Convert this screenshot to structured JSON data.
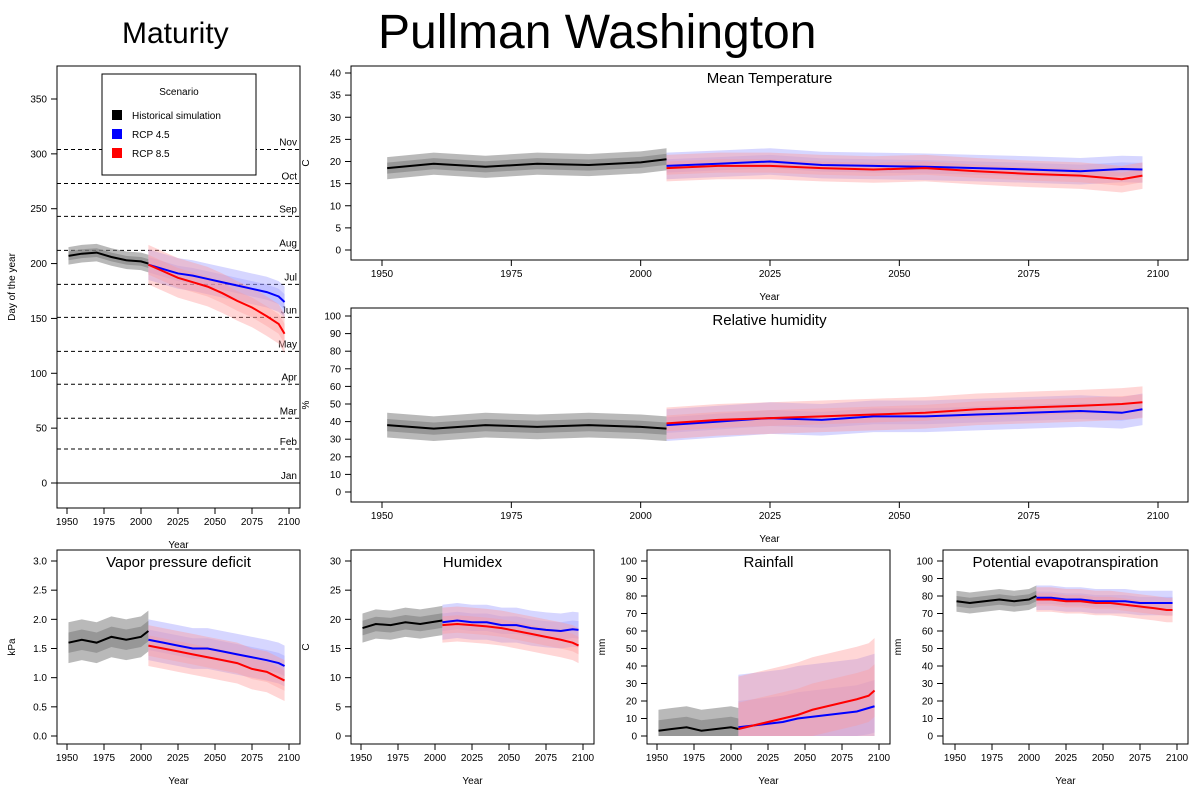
{
  "page": {
    "title": "Pullman Washington",
    "left_title": "Maturity"
  },
  "colors": {
    "historical": "#000000",
    "rcp45": "#0000ff",
    "rcp85": "#ff0000",
    "hist_band": "#808080",
    "rcp45_band": "#9999ff",
    "rcp85_band": "#ff9999"
  },
  "chart_data": [
    {
      "id": "maturity",
      "type": "line",
      "title": "",
      "xlabel": "Year",
      "ylabel": "Day of the year",
      "xlim": [
        1950,
        2100
      ],
      "ylim": [
        0,
        350
      ],
      "xticks": [
        1950,
        1975,
        2000,
        2025,
        2050,
        2075,
        2100
      ],
      "yticks": [
        0,
        50,
        100,
        150,
        200,
        250,
        300,
        350
      ],
      "month_lines": [
        {
          "day": 0,
          "label": "Jan"
        },
        {
          "day": 31,
          "label": "Feb"
        },
        {
          "day": 59,
          "label": "Mar"
        },
        {
          "day": 90,
          "label": "Apr"
        },
        {
          "day": 120,
          "label": "May"
        },
        {
          "day": 151,
          "label": "Jun"
        },
        {
          "day": 181,
          "label": "Jul"
        },
        {
          "day": 212,
          "label": "Aug"
        },
        {
          "day": 243,
          "label": "Sep"
        },
        {
          "day": 273,
          "label": "Oct"
        },
        {
          "day": 304,
          "label": "Nov"
        }
      ],
      "legend": {
        "title": "Scenario",
        "placement": "top-left",
        "entries": [
          "Historical simulation",
          "RCP 4.5",
          "RCP 8.5"
        ]
      },
      "series": [
        {
          "name": "Historical simulation",
          "x": [
            1951,
            1960,
            1970,
            1980,
            1990,
            2000,
            2005
          ],
          "y": [
            207,
            209,
            210,
            206,
            203,
            202,
            200
          ],
          "band": 8
        },
        {
          "name": "RCP 4.5",
          "x": [
            2005,
            2015,
            2025,
            2035,
            2045,
            2055,
            2065,
            2075,
            2085,
            2093,
            2097
          ],
          "y": [
            199,
            195,
            191,
            189,
            186,
            183,
            180,
            177,
            174,
            170,
            165
          ],
          "band": 14
        },
        {
          "name": "RCP 8.5",
          "x": [
            2005,
            2015,
            2025,
            2035,
            2045,
            2055,
            2065,
            2075,
            2085,
            2093,
            2097
          ],
          "y": [
            199,
            193,
            187,
            183,
            179,
            173,
            166,
            160,
            152,
            145,
            136
          ],
          "band": 18
        }
      ]
    },
    {
      "id": "mean-temperature",
      "type": "line",
      "title": "Mean Temperature",
      "xlabel": "Year",
      "ylabel": "C",
      "xlim": [
        1950,
        2100
      ],
      "ylim": [
        0,
        40
      ],
      "xticks": [
        1950,
        1975,
        2000,
        2025,
        2050,
        2075,
        2100
      ],
      "yticks": [
        0,
        5,
        10,
        15,
        20,
        25,
        30,
        35,
        40
      ],
      "series": [
        {
          "name": "Historical simulation",
          "x": [
            1951,
            1960,
            1970,
            1980,
            1990,
            2000,
            2005
          ],
          "y": [
            18.5,
            19.5,
            18.8,
            19.5,
            19.2,
            19.8,
            20.5
          ],
          "band": 2.5
        },
        {
          "name": "RCP 4.5",
          "x": [
            2005,
            2015,
            2025,
            2035,
            2045,
            2055,
            2065,
            2075,
            2085,
            2093,
            2097
          ],
          "y": [
            19,
            19.5,
            20,
            19.2,
            19,
            18.8,
            18.5,
            18.2,
            17.8,
            18.3,
            18.2
          ],
          "band": 3
        },
        {
          "name": "RCP 8.5",
          "x": [
            2005,
            2015,
            2025,
            2035,
            2045,
            2055,
            2065,
            2075,
            2085,
            2093,
            2097
          ],
          "y": [
            18.5,
            19,
            19,
            18.5,
            18.2,
            18.5,
            17.8,
            17.2,
            16.8,
            16,
            16.8
          ],
          "band": 3
        }
      ]
    },
    {
      "id": "relative-humidity",
      "type": "line",
      "title": "Relative humidity",
      "xlabel": "Year",
      "ylabel": "%",
      "xlim": [
        1950,
        2100
      ],
      "ylim": [
        0,
        100
      ],
      "xticks": [
        1950,
        1975,
        2000,
        2025,
        2050,
        2075,
        2100
      ],
      "yticks": [
        0,
        10,
        20,
        30,
        40,
        50,
        60,
        70,
        80,
        90,
        100
      ],
      "series": [
        {
          "name": "Historical simulation",
          "x": [
            1951,
            1960,
            1970,
            1980,
            1990,
            2000,
            2005
          ],
          "y": [
            38,
            36,
            38,
            37,
            38,
            37,
            36
          ],
          "band": 7
        },
        {
          "name": "RCP 4.5",
          "x": [
            2005,
            2015,
            2025,
            2035,
            2045,
            2055,
            2065,
            2075,
            2085,
            2093,
            2097
          ],
          "y": [
            38,
            40,
            42,
            41,
            43,
            43,
            44,
            45,
            46,
            45,
            47
          ],
          "band": 9
        },
        {
          "name": "RCP 8.5",
          "x": [
            2005,
            2015,
            2025,
            2035,
            2045,
            2055,
            2065,
            2075,
            2085,
            2093,
            2097
          ],
          "y": [
            39,
            41,
            42,
            43,
            44,
            45,
            47,
            48,
            49,
            50,
            51
          ],
          "band": 9
        }
      ]
    },
    {
      "id": "vapor-pressure-deficit",
      "type": "line",
      "title": "Vapor pressure deficit",
      "xlabel": "Year",
      "ylabel": "kPa",
      "xlim": [
        1950,
        2100
      ],
      "ylim": [
        0,
        3
      ],
      "xticks": [
        1950,
        1975,
        2000,
        2025,
        2050,
        2075,
        2100
      ],
      "yticks": [
        0.0,
        0.5,
        1.0,
        1.5,
        2.0,
        2.5,
        3.0
      ],
      "series": [
        {
          "name": "Historical simulation",
          "x": [
            1951,
            1960,
            1970,
            1980,
            1990,
            2000,
            2005
          ],
          "y": [
            1.6,
            1.65,
            1.6,
            1.7,
            1.65,
            1.7,
            1.8
          ],
          "band": 0.35
        },
        {
          "name": "RCP 4.5",
          "x": [
            2005,
            2015,
            2025,
            2035,
            2045,
            2055,
            2065,
            2075,
            2085,
            2093,
            2097
          ],
          "y": [
            1.65,
            1.6,
            1.55,
            1.5,
            1.5,
            1.45,
            1.4,
            1.35,
            1.3,
            1.25,
            1.2
          ],
          "band": 0.35
        },
        {
          "name": "RCP 8.5",
          "x": [
            2005,
            2015,
            2025,
            2035,
            2045,
            2055,
            2065,
            2075,
            2085,
            2093,
            2097
          ],
          "y": [
            1.55,
            1.5,
            1.45,
            1.4,
            1.35,
            1.3,
            1.25,
            1.15,
            1.1,
            1.0,
            0.95
          ],
          "band": 0.35
        }
      ]
    },
    {
      "id": "humidex",
      "type": "line",
      "title": "Humidex",
      "xlabel": "Year",
      "ylabel": "C",
      "xlim": [
        1950,
        2100
      ],
      "ylim": [
        0,
        30
      ],
      "xticks": [
        1950,
        1975,
        2000,
        2025,
        2050,
        2075,
        2100
      ],
      "yticks": [
        0,
        5,
        10,
        15,
        20,
        25,
        30
      ],
      "series": [
        {
          "name": "Historical simulation",
          "x": [
            1951,
            1960,
            1970,
            1980,
            1990,
            2000,
            2005
          ],
          "y": [
            18.5,
            19.2,
            19,
            19.5,
            19.2,
            19.6,
            19.8
          ],
          "band": 2.5
        },
        {
          "name": "RCP 4.5",
          "x": [
            2005,
            2015,
            2025,
            2035,
            2045,
            2055,
            2065,
            2075,
            2085,
            2093,
            2097
          ],
          "y": [
            19.5,
            19.8,
            19.5,
            19.5,
            19,
            19,
            18.5,
            18.2,
            18,
            18.3,
            18.2
          ],
          "band": 3
        },
        {
          "name": "RCP 8.5",
          "x": [
            2005,
            2015,
            2025,
            2035,
            2045,
            2055,
            2065,
            2075,
            2085,
            2093,
            2097
          ],
          "y": [
            19,
            19.2,
            19,
            18.8,
            18.5,
            18,
            17.5,
            17,
            16.5,
            16,
            15.5
          ],
          "band": 3
        }
      ]
    },
    {
      "id": "rainfall",
      "type": "line",
      "title": "Rainfall",
      "xlabel": "Year",
      "ylabel": "mm",
      "xlim": [
        1950,
        2100
      ],
      "ylim": [
        0,
        100
      ],
      "xticks": [
        1950,
        1975,
        2000,
        2025,
        2050,
        2075,
        2100
      ],
      "yticks": [
        0,
        10,
        20,
        30,
        40,
        50,
        60,
        70,
        80,
        90,
        100
      ],
      "series": [
        {
          "name": "Historical simulation",
          "x": [
            1951,
            1960,
            1970,
            1980,
            1990,
            2000,
            2005
          ],
          "y": [
            3,
            4,
            5,
            3,
            4,
            5,
            4
          ],
          "band": 12
        },
        {
          "name": "RCP 4.5",
          "x": [
            2005,
            2015,
            2025,
            2035,
            2045,
            2055,
            2065,
            2075,
            2085,
            2093,
            2097
          ],
          "y": [
            5,
            6,
            7,
            8,
            10,
            11,
            12,
            13,
            14,
            16,
            17
          ],
          "band": 30
        },
        {
          "name": "RCP 8.5",
          "x": [
            2005,
            2015,
            2025,
            2035,
            2045,
            2055,
            2065,
            2075,
            2085,
            2093,
            2097
          ],
          "y": [
            4,
            6,
            8,
            10,
            12,
            15,
            17,
            19,
            21,
            23,
            26
          ],
          "band": 30
        }
      ]
    },
    {
      "id": "potential-evapotranspiration",
      "type": "line",
      "title": "Potential evapotranspiration",
      "xlabel": "Year",
      "ylabel": "mm",
      "xlim": [
        1950,
        2100
      ],
      "ylim": [
        0,
        100
      ],
      "xticks": [
        1950,
        1975,
        2000,
        2025,
        2050,
        2075,
        2100
      ],
      "yticks": [
        0,
        10,
        20,
        30,
        40,
        50,
        60,
        70,
        80,
        90,
        100
      ],
      "series": [
        {
          "name": "Historical simulation",
          "x": [
            1951,
            1960,
            1970,
            1980,
            1990,
            2000,
            2005
          ],
          "y": [
            77,
            76,
            77,
            78,
            77,
            78,
            80
          ],
          "band": 6
        },
        {
          "name": "RCP 4.5",
          "x": [
            2005,
            2015,
            2025,
            2035,
            2045,
            2055,
            2065,
            2075,
            2085,
            2093,
            2097
          ],
          "y": [
            79,
            79,
            78,
            78,
            77,
            77,
            77,
            76,
            76,
            76,
            76
          ],
          "band": 7
        },
        {
          "name": "RCP 8.5",
          "x": [
            2005,
            2015,
            2025,
            2035,
            2045,
            2055,
            2065,
            2075,
            2085,
            2093,
            2097
          ],
          "y": [
            78,
            78,
            77,
            77,
            76,
            76,
            75,
            74,
            73,
            72,
            72
          ],
          "band": 7
        }
      ]
    }
  ]
}
